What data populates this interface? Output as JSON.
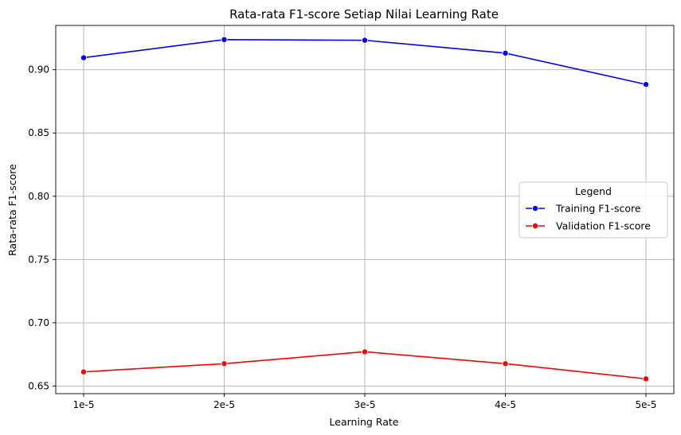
{
  "chart_data": {
    "type": "line",
    "title": "Rata-rata F1-score Setiap Nilai Learning Rate",
    "xlabel": "Learning Rate",
    "ylabel": "Rata-rata F1-score",
    "categories": [
      "1e-5",
      "2e-5",
      "3e-5",
      "4e-5",
      "5e-5"
    ],
    "ylim": [
      0.644,
      0.935
    ],
    "yticks": [
      0.65,
      0.7,
      0.75,
      0.8,
      0.85,
      0.9
    ],
    "ytick_labels": [
      "0.65",
      "0.70",
      "0.75",
      "0.80",
      "0.85",
      "0.90"
    ],
    "grid": true,
    "legend": {
      "title": "Legend",
      "placement": "center-right"
    },
    "series": [
      {
        "name": "Training F1-score",
        "color": "#0000ff",
        "marker": "circle",
        "values": [
          0.9095,
          0.9238,
          0.9233,
          0.9131,
          0.8884
        ]
      },
      {
        "name": "Validation F1-score",
        "color": "#ff0000",
        "marker": "circle",
        "values": [
          0.6612,
          0.6677,
          0.6771,
          0.6677,
          0.6557
        ]
      }
    ]
  }
}
